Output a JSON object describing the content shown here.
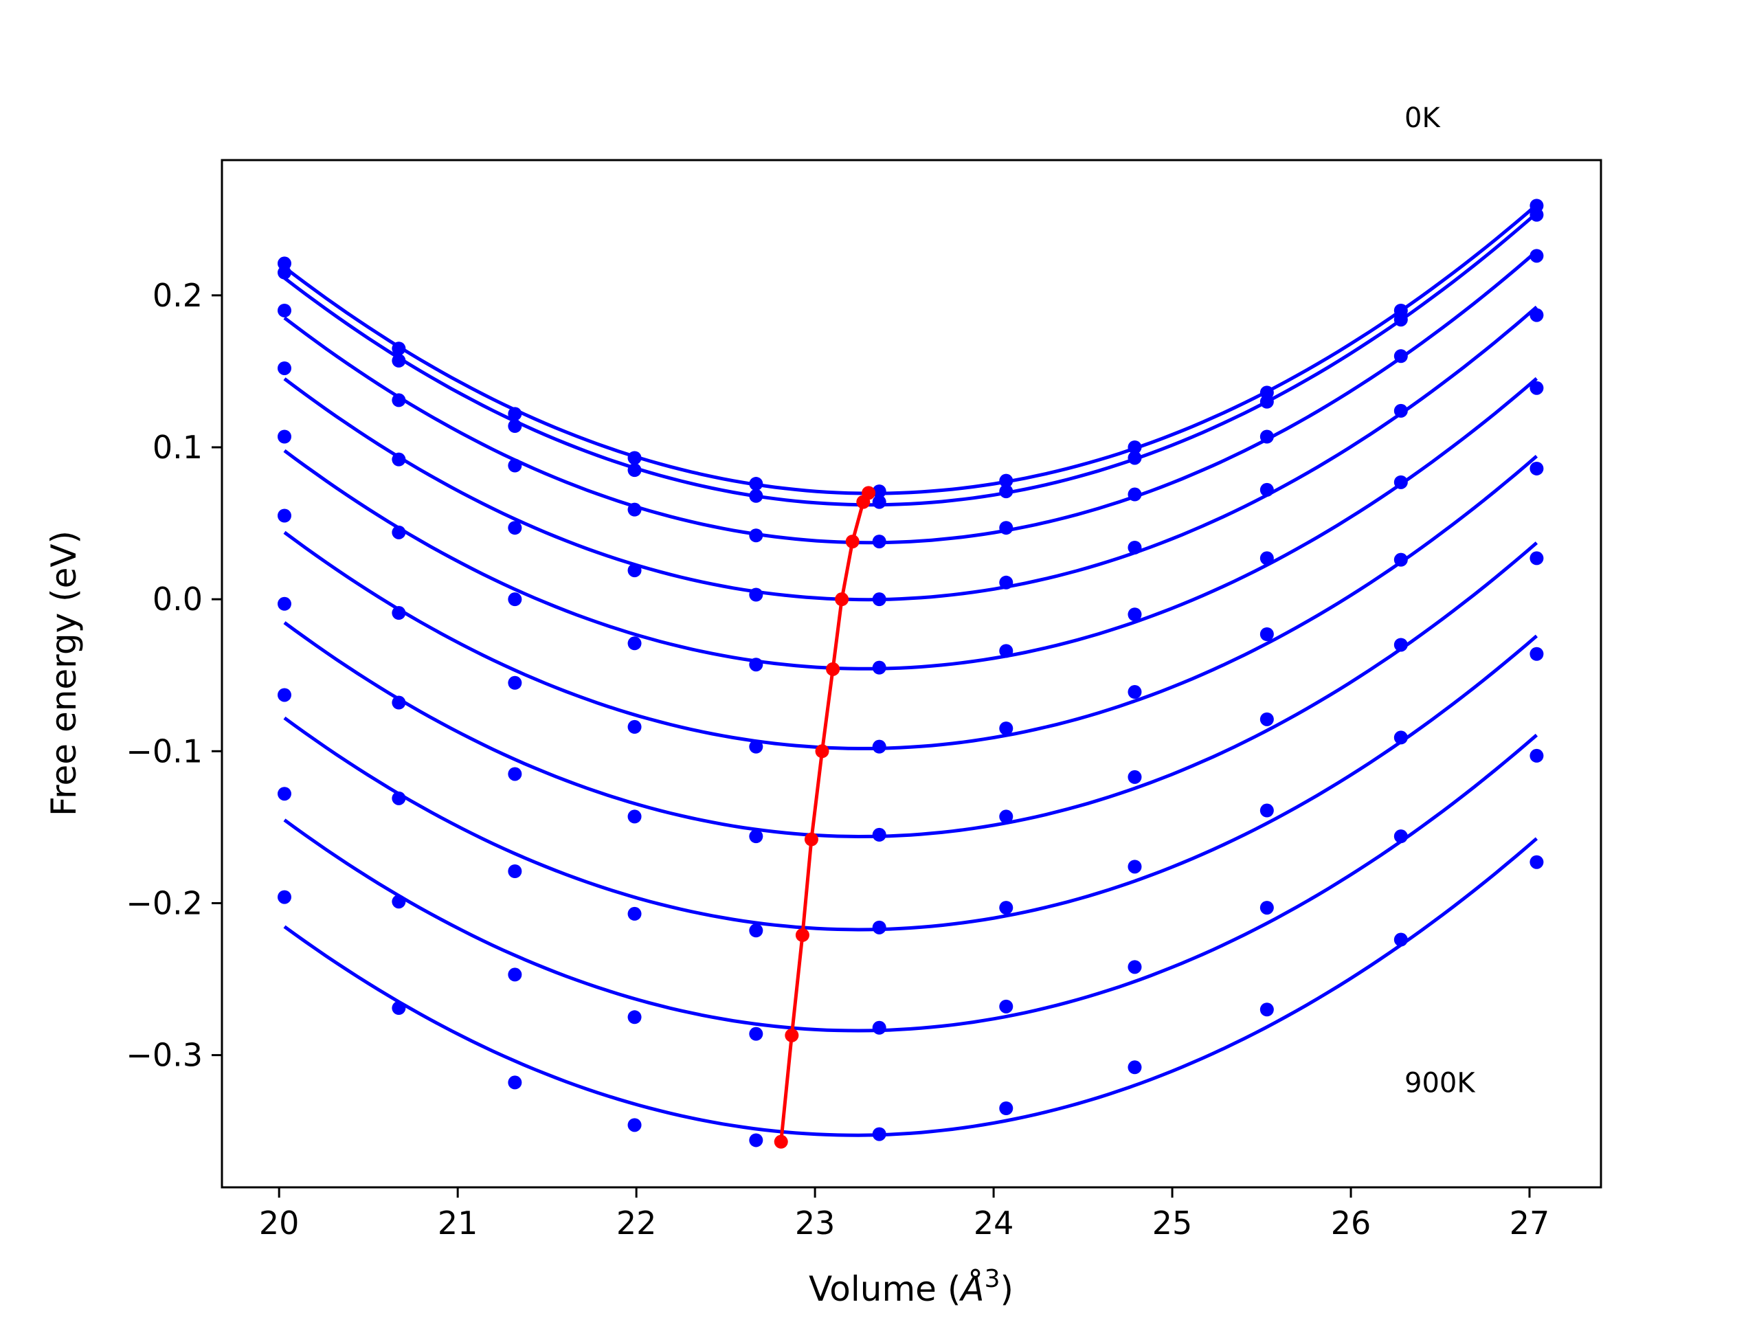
{
  "chart_data": {
    "type": "line",
    "title": "",
    "xlabel_prefix": "Volume (",
    "xlabel_unit": "Å",
    "xlabel_exp": "3",
    "xlabel_suffix": ")",
    "ylabel": "Free energy (eV)",
    "xlim": [
      19.68,
      27.4
    ],
    "ylim": [
      -0.387,
      0.289
    ],
    "xticks": [
      20,
      21,
      22,
      23,
      24,
      25,
      26,
      27
    ],
    "xtick_labels": [
      "20",
      "21",
      "22",
      "23",
      "24",
      "25",
      "26",
      "27"
    ],
    "yticks": [
      -0.3,
      -0.2,
      -0.1,
      0.0,
      0.1,
      0.2
    ],
    "ytick_labels": [
      "−0.3",
      "−0.2",
      "−0.1",
      "0.0",
      "0.1",
      "0.2"
    ],
    "grid": false,
    "annotations": [
      {
        "text": "0K",
        "x": 26.3,
        "y": 0.317
      },
      {
        "text": "900K",
        "x": 26.3,
        "y": -0.318
      }
    ],
    "line_color": "#0000ff",
    "min_color": "#ff0000",
    "x": [
      20.03,
      20.67,
      21.32,
      21.99,
      22.67,
      23.36,
      24.07,
      24.79,
      25.53,
      26.28,
      27.04
    ],
    "series": [
      {
        "values": [
          0.221,
          0.165,
          0.122,
          0.093,
          0.076,
          0.071,
          0.078,
          0.1,
          0.136,
          0.19,
          0.259
        ]
      },
      {
        "values": [
          0.215,
          0.157,
          0.114,
          0.085,
          0.068,
          0.064,
          0.071,
          0.093,
          0.13,
          0.184,
          0.253
        ]
      },
      {
        "values": [
          0.19,
          0.131,
          0.088,
          0.059,
          0.042,
          0.038,
          0.047,
          0.069,
          0.107,
          0.16,
          0.226
        ]
      },
      {
        "values": [
          0.152,
          0.092,
          0.047,
          0.019,
          0.003,
          0.0,
          0.011,
          0.034,
          0.072,
          0.124,
          0.187
        ]
      },
      {
        "values": [
          0.107,
          0.044,
          0.0,
          -0.029,
          -0.043,
          -0.045,
          -0.034,
          -0.01,
          0.027,
          0.077,
          0.139
        ]
      },
      {
        "values": [
          0.055,
          -0.009,
          -0.055,
          -0.084,
          -0.097,
          -0.097,
          -0.085,
          -0.061,
          -0.023,
          0.026,
          0.086
        ]
      },
      {
        "values": [
          -0.003,
          -0.068,
          -0.115,
          -0.143,
          -0.156,
          -0.155,
          -0.143,
          -0.117,
          -0.079,
          -0.03,
          0.027
        ]
      },
      {
        "values": [
          -0.063,
          -0.131,
          -0.179,
          -0.207,
          -0.218,
          -0.216,
          -0.203,
          -0.176,
          -0.139,
          -0.091,
          -0.036
        ]
      },
      {
        "values": [
          -0.128,
          -0.199,
          -0.247,
          -0.275,
          -0.286,
          -0.282,
          -0.268,
          -0.242,
          -0.203,
          -0.156,
          -0.103
        ]
      },
      {
        "values": [
          -0.196,
          -0.269,
          -0.318,
          -0.346,
          -0.356,
          -0.352,
          -0.335,
          -0.308,
          -0.27,
          -0.224,
          -0.173
        ]
      }
    ],
    "minima": {
      "x": [
        23.3,
        23.27,
        23.21,
        23.15,
        23.1,
        23.04,
        22.98,
        22.93,
        22.87,
        22.81
      ],
      "y": [
        0.07,
        0.064,
        0.038,
        0.0,
        -0.046,
        -0.1,
        -0.158,
        -0.221,
        -0.287,
        -0.357
      ]
    }
  }
}
